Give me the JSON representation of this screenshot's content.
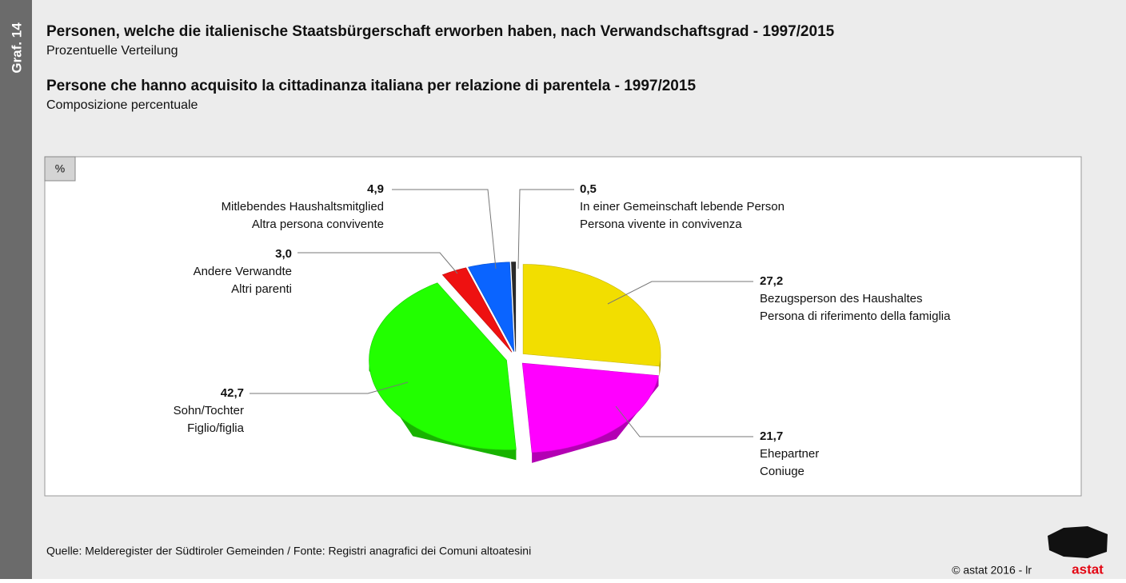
{
  "chart_data": {
    "type": "pie",
    "side_label": "Graf. 14",
    "title": "Personen, welche die italienische Staatsbürgerschaft erworben haben, nach Verwandschaftsgrad - 1997/2015",
    "subtitle": "Prozentuelle Verteilung",
    "title_it": "Persone che hanno acquisito la cittadinanza italiana per relazione di parentela - 1997/2015",
    "subtitle_it": "Composizione percentuale",
    "unit": "%",
    "categories": [
      "Bezugsperson des Haushaltes",
      "Ehepartner",
      "Sohn/Tochter",
      "Andere Verwandte",
      "Mitlebendes Haushaltsmitglied",
      "In einer Gemeinschaft lebende Person"
    ],
    "categories_it": [
      "Persona di riferimento della famiglia",
      "Coniuge",
      "Figlio/figlia",
      "Altri parenti",
      "Altra persona convivente",
      "Persona vivente in convivenza"
    ],
    "values": [
      27.2,
      21.7,
      42.7,
      3.0,
      4.9,
      0.5
    ],
    "value_labels": [
      "27,2",
      "21,7",
      "42,7",
      "3,0",
      "4,9",
      "0,5"
    ],
    "colors": [
      "#f2de00",
      "#ff00ff",
      "#22ff00",
      "#ee1111",
      "#0a64ff",
      "#2a2a2a"
    ],
    "source": "Quelle: Melderegister der Südtiroler Gemeinden / Fonte: Registri anagrafici dei Comuni altoatesini",
    "copyright": "©  astat 2016 - lr",
    "logo": "astat"
  }
}
